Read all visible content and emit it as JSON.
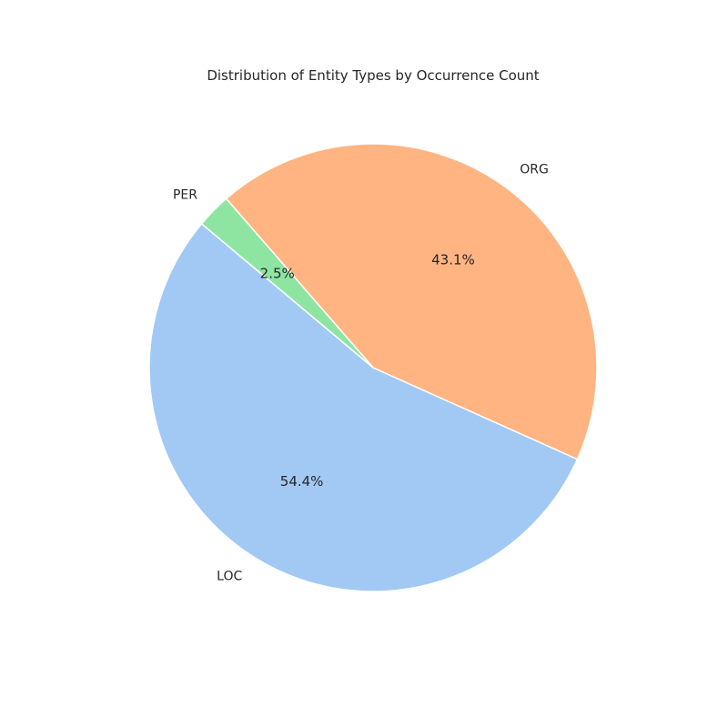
{
  "chart_data": {
    "type": "pie",
    "title": "Distribution of Entity Types by Occurrence Count",
    "slices": [
      {
        "label": "LOC",
        "value": 54.4,
        "pct_label": "54.4%",
        "color": "#a1c9f4"
      },
      {
        "label": "ORG",
        "value": 43.1,
        "pct_label": "43.1%",
        "color": "#ffb482"
      },
      {
        "label": "PER",
        "value": 2.5,
        "pct_label": "2.5%",
        "color": "#8de5a1"
      }
    ],
    "start_angle_deg": 140,
    "direction": "counterclockwise",
    "legend": "none"
  }
}
